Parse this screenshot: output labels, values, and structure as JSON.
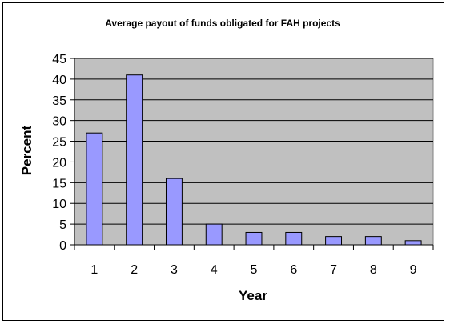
{
  "chart_data": {
    "type": "bar",
    "title": "Average payout of funds obligated for FAH projects",
    "xlabel": "Year",
    "ylabel": "Percent",
    "categories": [
      "1",
      "2",
      "3",
      "4",
      "5",
      "6",
      "7",
      "8",
      "9"
    ],
    "values": [
      27,
      41,
      16,
      5,
      3,
      3,
      2,
      2,
      1
    ],
    "ylim": [
      0,
      45
    ],
    "yticks": [
      "0",
      "5",
      "10",
      "15",
      "20",
      "25",
      "30",
      "35",
      "40",
      "45"
    ],
    "grid": true,
    "legend": "none",
    "colors": {
      "bar_fill": "#9999ff",
      "bar_stroke": "#000000",
      "plot_background": "#c0c0c0",
      "gridline": "#000000"
    }
  }
}
